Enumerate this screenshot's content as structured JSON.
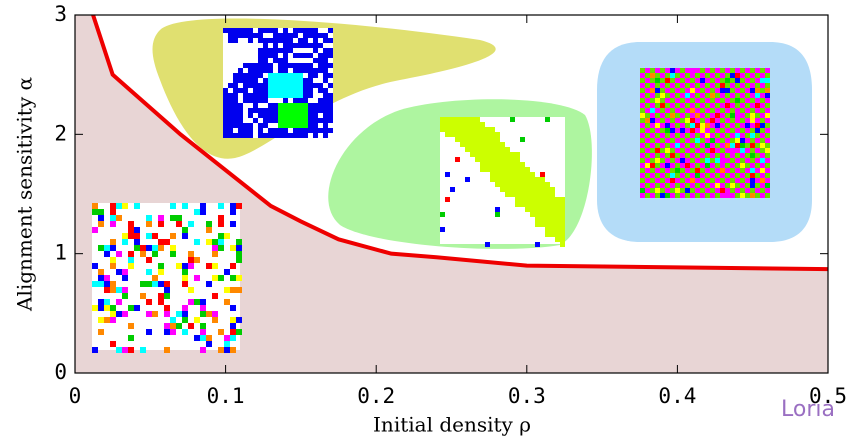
{
  "chart_data": {
    "type": "line",
    "xlabel": "Initial density ρ",
    "ylabel": "Alignment sensitivity α",
    "x": [
      0.012,
      0.025,
      0.07,
      0.13,
      0.15,
      0.175,
      0.21,
      0.24,
      0.3,
      0.5
    ],
    "values": [
      3,
      2.5,
      2.0,
      1.4,
      1.27,
      1.12,
      1.0,
      0.97,
      0.9,
      0.87
    ],
    "color": "#ee0000",
    "area_color": "#e8d5d5",
    "xlim": [
      0,
      0.5
    ],
    "ylim": [
      0,
      3
    ],
    "xticks": [
      0,
      0.1,
      0.2,
      0.3,
      0.4,
      0.5
    ],
    "yticks": [
      0,
      1,
      2,
      3
    ]
  },
  "logo": "Loria"
}
